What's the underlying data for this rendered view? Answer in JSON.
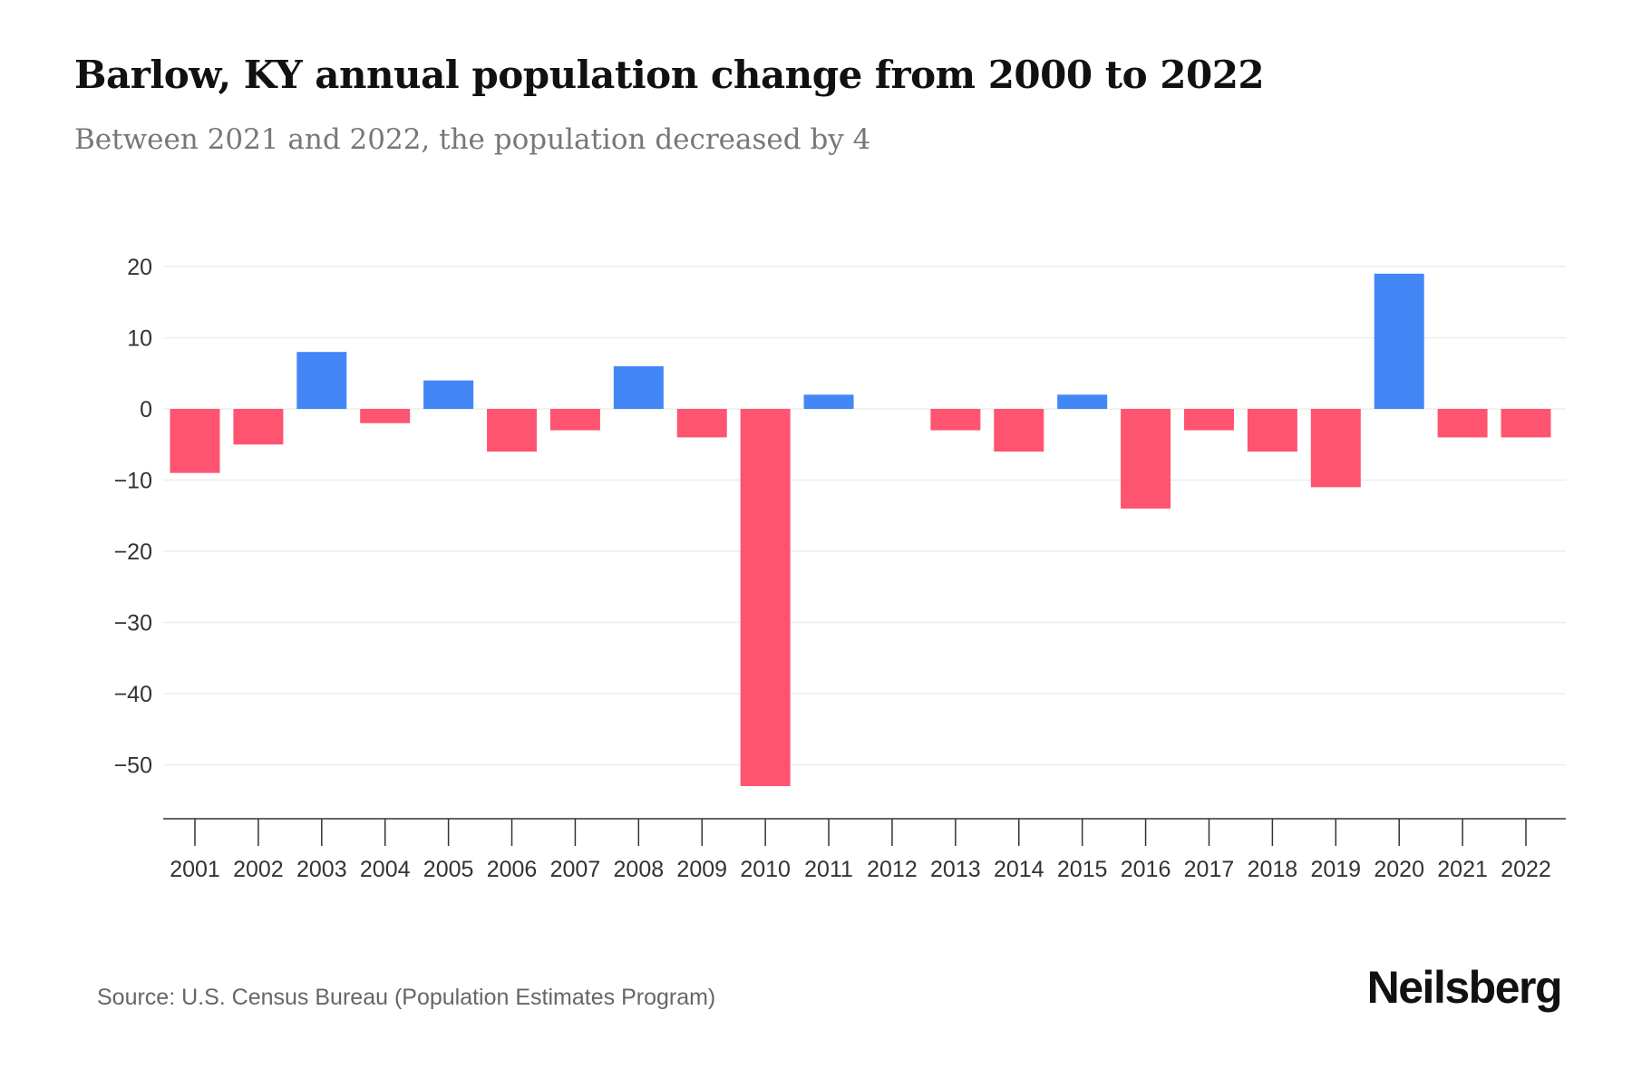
{
  "title": "Barlow, KY annual population change from 2000 to 2022",
  "subtitle": "Between 2021 and 2022, the population decreased by 4",
  "source": "Source: U.S. Census Bureau (Population Estimates Program)",
  "logo": "Neilsberg",
  "colors": {
    "positive": "#4287F5",
    "negative": "#FF5470"
  },
  "chart_data": {
    "type": "bar",
    "title": "Barlow, KY annual population change from 2000 to 2022",
    "xlabel": "",
    "ylabel": "",
    "categories": [
      "2001",
      "2002",
      "2003",
      "2004",
      "2005",
      "2006",
      "2007",
      "2008",
      "2009",
      "2010",
      "2011",
      "2012",
      "2013",
      "2014",
      "2015",
      "2016",
      "2017",
      "2018",
      "2019",
      "2020",
      "2021",
      "2022"
    ],
    "values": [
      -9,
      -5,
      8,
      -2,
      4,
      -6,
      -3,
      6,
      -4,
      -53,
      2,
      0,
      -3,
      -6,
      2,
      -14,
      -3,
      -6,
      -11,
      19,
      -4,
      -4
    ],
    "yticks": [
      20,
      10,
      0,
      -10,
      -20,
      -30,
      -40,
      -50
    ],
    "ytick_labels": [
      "20",
      "10",
      "0",
      "−10",
      "−20",
      "−30",
      "−40",
      "−50"
    ],
    "ylim": [
      -57,
      20
    ],
    "grid": true
  }
}
